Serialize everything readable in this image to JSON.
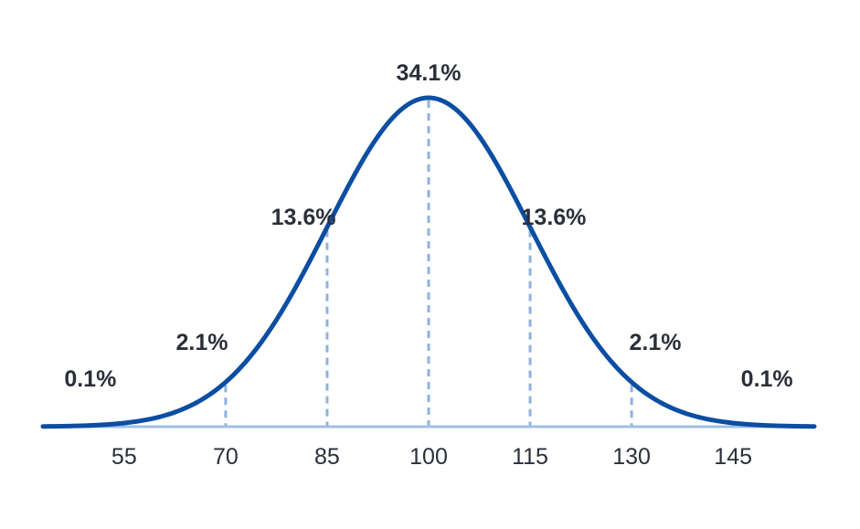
{
  "chart_data": {
    "type": "line",
    "distribution": "normal",
    "mean": 100,
    "sd": 15,
    "xlim": [
      43,
      157
    ],
    "x_ticks": [
      "55",
      "70",
      "85",
      "100",
      "115",
      "130",
      "145"
    ],
    "title": "",
    "xlabel": "",
    "ylabel": "",
    "grid": false,
    "legend": "none",
    "boundaries": [
      70,
      85,
      100,
      115,
      130
    ],
    "region_labels": [
      {
        "text": "0.1%",
        "x": 50
      },
      {
        "text": "2.1%",
        "x": 66.5
      },
      {
        "text": "13.6%",
        "x": 81.5
      },
      {
        "text": "34.1%",
        "x": 100
      },
      {
        "text": "13.6%",
        "x": 118.5
      },
      {
        "text": "2.1%",
        "x": 133.5
      },
      {
        "text": "0.1%",
        "x": 150
      }
    ],
    "colors": {
      "curve": "#0b4ea2",
      "baseline": "#9fbfe6",
      "dashed": "#8fb2dd",
      "text": "#2b2f3a"
    }
  }
}
